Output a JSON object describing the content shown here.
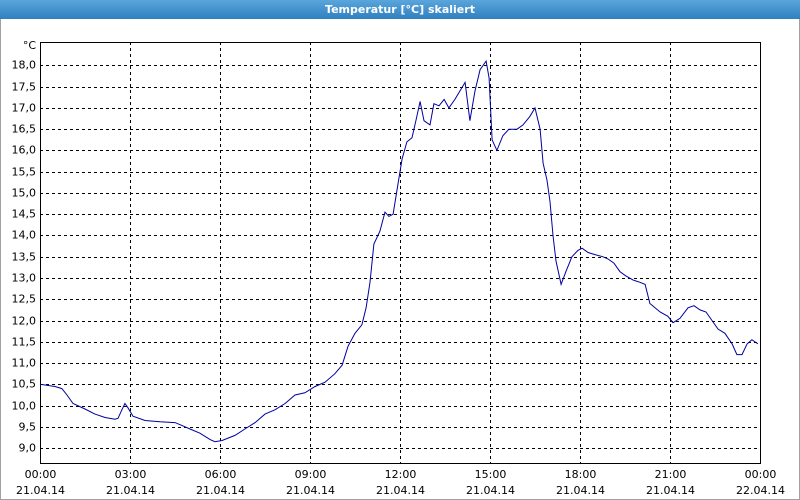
{
  "chart_data": {
    "type": "line",
    "title": "Temperatur [°C] skaliert",
    "y_unit": "°C",
    "x": [
      0,
      0.5,
      0.73,
      0.9,
      1.1,
      1.5,
      1.83,
      2.17,
      2.5,
      2.6,
      2.73,
      2.83,
      2.93,
      3.1,
      3.5,
      4,
      4.5,
      4.67,
      5,
      5.33,
      5.67,
      5.83,
      6.07,
      6.5,
      6.83,
      7.17,
      7.5,
      7.83,
      8.17,
      8.5,
      8.83,
      9.17,
      9.5,
      9.83,
      10.07,
      10.27,
      10.5,
      10.73,
      10.87,
      11,
      11.13,
      11.33,
      11.5,
      11.63,
      11.77,
      11.93,
      12.07,
      12.23,
      12.4,
      12.53,
      12.67,
      12.8,
      13,
      13.13,
      13.3,
      13.47,
      13.63,
      13.83,
      14,
      14.17,
      14.33,
      14.5,
      14.67,
      14.87,
      14.97,
      15.07,
      15.23,
      15.43,
      15.63,
      15.9,
      16.1,
      16.33,
      16.5,
      16.67,
      16.77,
      16.9,
      17,
      17.1,
      17.2,
      17.37,
      17.53,
      17.73,
      17.93,
      18.07,
      18.27,
      18.5,
      18.77,
      18.93,
      19.13,
      19.33,
      19.53,
      19.77,
      20,
      20.17,
      20.33,
      20.67,
      20.93,
      21.1,
      21.33,
      21.6,
      21.8,
      22,
      22.2,
      22.4,
      22.6,
      22.83,
      23.07,
      23.23,
      23.4,
      23.57,
      23.73,
      23.93
    ],
    "series": [
      {
        "color": "#0000a0",
        "values": [
          10.5,
          10.45,
          10.4,
          10.25,
          10.05,
          9.92,
          9.8,
          9.72,
          9.68,
          9.7,
          9.9,
          10.05,
          9.95,
          9.75,
          9.65,
          9.62,
          9.6,
          9.55,
          9.45,
          9.35,
          9.2,
          9.15,
          9.18,
          9.3,
          9.45,
          9.6,
          9.8,
          9.9,
          10.05,
          10.25,
          10.3,
          10.45,
          10.55,
          10.75,
          10.95,
          11.4,
          11.7,
          11.9,
          12.3,
          12.9,
          13.8,
          14.1,
          14.55,
          14.45,
          14.5,
          15.2,
          15.8,
          16.2,
          16.3,
          16.7,
          17.15,
          16.7,
          16.6,
          17.1,
          17.05,
          17.2,
          17.0,
          17.2,
          17.4,
          17.6,
          16.7,
          17.4,
          17.9,
          18.1,
          17.7,
          16.25,
          16.0,
          16.35,
          16.5,
          16.5,
          16.6,
          16.8,
          17.0,
          16.5,
          15.7,
          15.3,
          14.8,
          14.0,
          13.4,
          12.85,
          13.15,
          13.5,
          13.65,
          13.7,
          13.6,
          13.55,
          13.5,
          13.45,
          13.35,
          13.15,
          13.05,
          12.95,
          12.9,
          12.85,
          12.4,
          12.2,
          12.1,
          11.95,
          12.05,
          12.3,
          12.35,
          12.25,
          12.2,
          12.0,
          11.8,
          11.7,
          11.45,
          11.2,
          11.2,
          11.45,
          11.55,
          11.45
        ]
      }
    ],
    "xlim": [
      0,
      24
    ],
    "xticks": [
      {
        "value": 0,
        "label": "00:00",
        "date": "21.04.14"
      },
      {
        "value": 3,
        "label": "03:00",
        "date": "21.04.14"
      },
      {
        "value": 6,
        "label": "06:00",
        "date": "21.04.14"
      },
      {
        "value": 9,
        "label": "09:00",
        "date": "21.04.14"
      },
      {
        "value": 12,
        "label": "12:00",
        "date": "21.04.14"
      },
      {
        "value": 15,
        "label": "15:00",
        "date": "21.04.14"
      },
      {
        "value": 18,
        "label": "18:00",
        "date": "21.04.14"
      },
      {
        "value": 21,
        "label": "21:00",
        "date": "21.04.14"
      },
      {
        "value": 24,
        "label": "00:00",
        "date": "22.04.14"
      }
    ],
    "ylim": [
      8.65,
      18.55
    ],
    "yticks": [
      {
        "value": 9,
        "label": "9,0"
      },
      {
        "value": 9.5,
        "label": "9,5"
      },
      {
        "value": 10,
        "label": "10,0"
      },
      {
        "value": 10.5,
        "label": "10,5"
      },
      {
        "value": 11,
        "label": "11,0"
      },
      {
        "value": 11.5,
        "label": "11,5"
      },
      {
        "value": 12,
        "label": "12,0"
      },
      {
        "value": 12.5,
        "label": "12,5"
      },
      {
        "value": 13,
        "label": "13,0"
      },
      {
        "value": 13.5,
        "label": "13,5"
      },
      {
        "value": 14,
        "label": "14,0"
      },
      {
        "value": 14.5,
        "label": "14,5"
      },
      {
        "value": 15,
        "label": "15,0"
      },
      {
        "value": 15.5,
        "label": "15,5"
      },
      {
        "value": 16,
        "label": "16,0"
      },
      {
        "value": 16.5,
        "label": "16,5"
      },
      {
        "value": 17,
        "label": "17,0"
      },
      {
        "value": 17.5,
        "label": "17,5"
      },
      {
        "value": 18,
        "label": "18,0"
      }
    ],
    "grid": true
  }
}
